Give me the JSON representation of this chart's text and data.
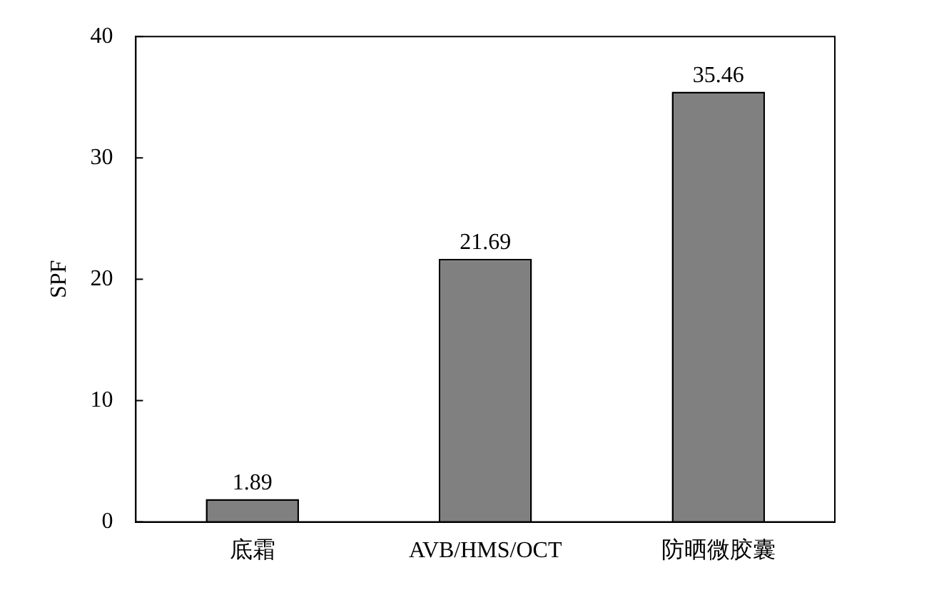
{
  "chart_data": {
    "type": "bar",
    "ylabel": "SPF",
    "categories": [
      "底霜",
      "AVB/HMS/OCT",
      "防晒微胶囊"
    ],
    "values": [
      1.89,
      21.69,
      35.46
    ],
    "color": "#808080",
    "ylim": [
      0,
      40
    ],
    "yticks": [
      0,
      10,
      20,
      30,
      40
    ],
    "data_labels": true
  }
}
